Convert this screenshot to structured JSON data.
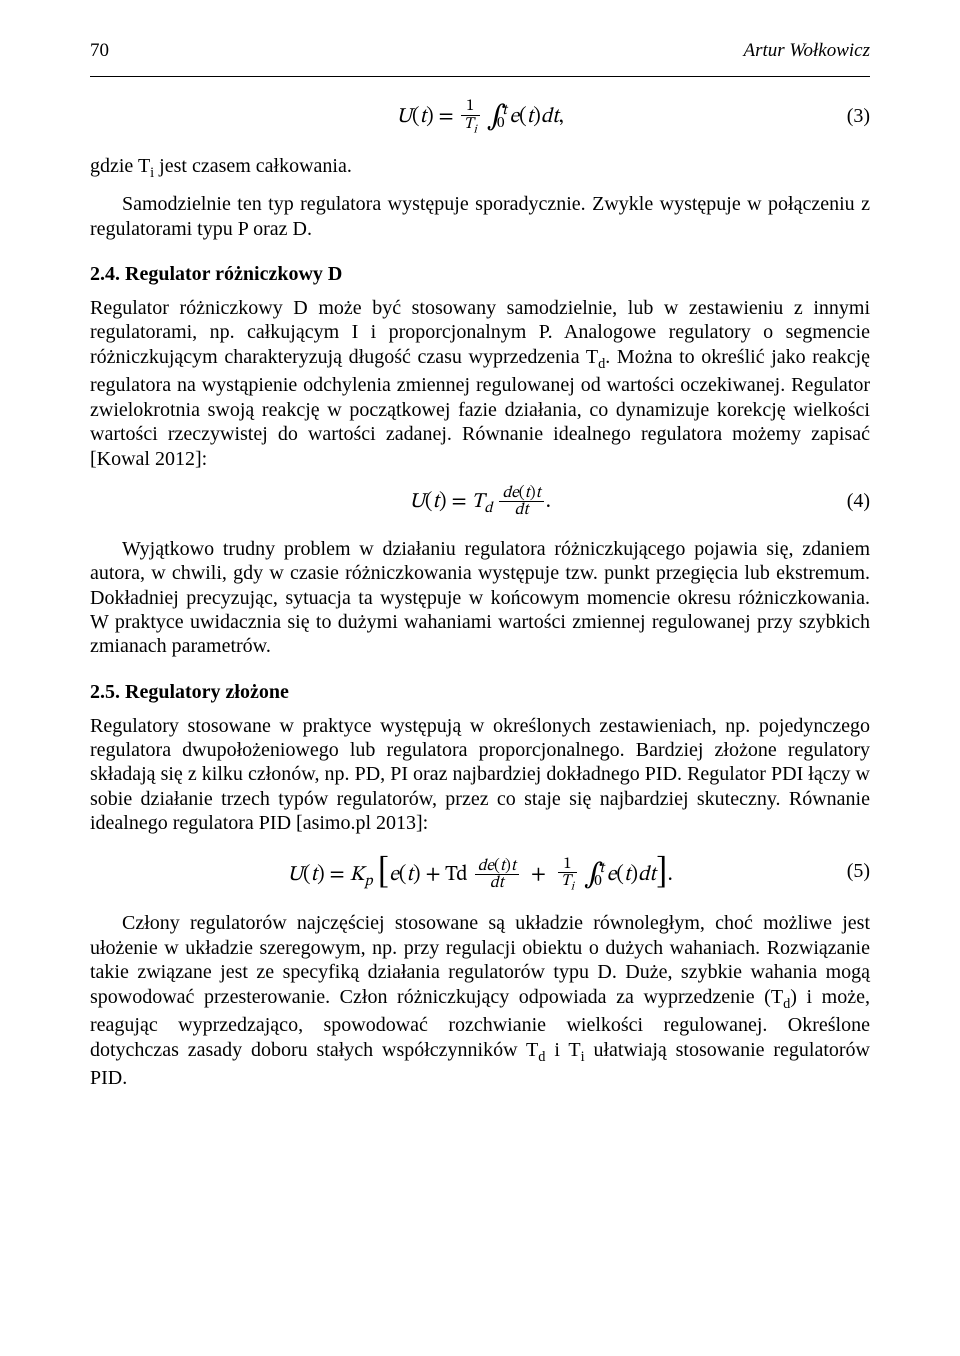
{
  "page_number": "70",
  "author": "Artur Wołkowicz",
  "equations": {
    "eq3": {
      "number": "(3)"
    },
    "eq4": {
      "number": "(4)"
    },
    "eq5": {
      "number": "(5)"
    }
  },
  "p_gdzie": "gdzie T",
  "p_gdzie_sub": "i",
  "p_gdzie_rest": "  jest czasem całkowania.",
  "p_samodzielnie": "Samodzielnie ten typ regulatora występuje sporadycznie. Zwykle występuje w połączeniu z regulatorami typu P oraz D.",
  "sec24": "2.4. Regulator różniczkowy D",
  "p_24a": "Regulator różniczkowy D może być stosowany samodzielnie, lub w zestawieniu z innymi regulatorami, np. całkującym I i proporcjonalnym P. Analogowe regulatory o segmencie różniczkującym charakteryzują długość czasu wyprzedzenia T",
  "p_24a_sub": "d",
  "p_24a_rest": ". Można to określić jako reakcję regulatora na wystąpienie odchylenia zmiennej regulowanej od wartości oczekiwanej. Regulator zwielokrotnia swoją reakcję w początkowej fazie działania, co dynamizuje korekcję wielkości wartości rzeczywistej do wartości zadanej. Równanie idealnego regulatora możemy zapisać [Kowal 2012]:",
  "p_24b": "Wyjątkowo trudny problem w działaniu regulatora różniczkującego pojawia się, zdaniem autora, w chwili, gdy w czasie różniczkowania występuje tzw. punkt przegięcia lub ekstremum. Dokładniej precyzując, sytuacja ta występuje w końcowym momencie okresu różniczkowania. W praktyce uwidacznia się to dużymi wahaniami wartości zmiennej regulowanej przy szybkich zmianach parametrów.",
  "sec25": "2.5. Regulatory złożone",
  "p_25a": "Regulatory stosowane w praktyce występują w określonych zestawieniach, np. pojedynczego regulatora dwupołożeniowego lub regulatora proporcjonalnego. Bardziej złożone regulatory składają się z kilku członów, np. PD, PI oraz najbardziej dokładnego PID. Regulator PDI łączy w sobie działanie trzech typów regulatorów, przez co staje się najbardziej skuteczny. Równanie idealnego regulatora PID [asimo.pl 2013]:",
  "p_25b_a": "Człony regulatorów najczęściej stosowane są układzie równoległym, choć  możliwe jest ułożenie w układzie szeregowym, np. przy regulacji obiektu o dużych wahaniach. Rozwiązanie takie związane jest ze specyfiką działania regulatorów typu D. Duże, szybkie wahania mogą spowodować przesterowanie. Człon różniczkujący odpowiada za wyprzedzenie (T",
  "p_25b_sub": "d",
  "p_25b_b": ") i może, reagując wyprzedzająco, spowodować rozchwianie wielkości regulowanej. Określone dotychczas zasady doboru stałych współczynników T",
  "p_25b_sub2": "d",
  "p_25b_c": "  i  T",
  "p_25b_sub3": "i",
  "p_25b_d": " ułatwiają stosowanie regulatorów PID."
}
